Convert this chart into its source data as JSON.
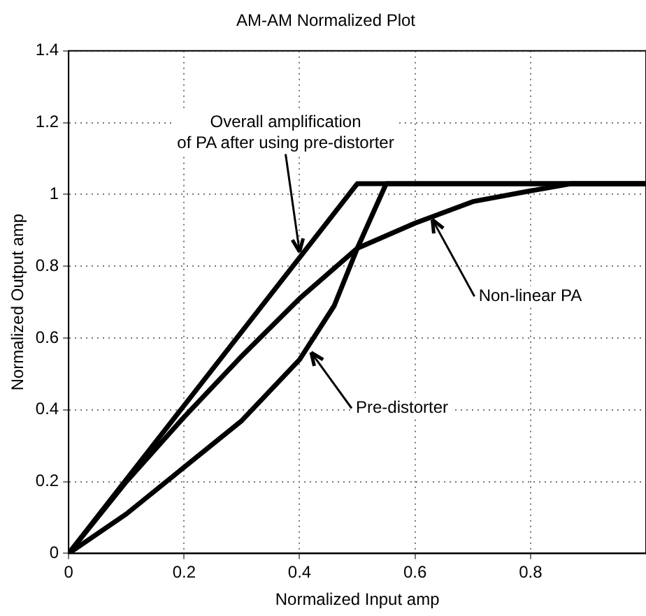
{
  "chart_data": {
    "type": "line",
    "title": "AM-AM Normalized Plot",
    "xlabel": "Normalized Input amp",
    "ylabel": "Normalized Output amp",
    "xlim": [
      0,
      1
    ],
    "xticks": [
      0,
      0.2,
      0.4,
      0.6,
      0.8
    ],
    "ylim": [
      0,
      1.4
    ],
    "yticks": [
      0,
      0.2,
      0.4,
      0.6,
      0.8,
      1,
      1.2,
      1.4
    ],
    "grid": true,
    "legend": false,
    "marker": "none",
    "line_style": "solid",
    "series": [
      {
        "color": "#000000",
        "x": [
          0,
          0.5,
          1
        ],
        "values": [
          0,
          1.03,
          1.03
        ]
      },
      {
        "color": "#000000",
        "x": [
          0,
          0.1,
          0.2,
          0.3,
          0.4,
          0.5,
          0.6,
          0.7,
          0.8,
          0.87,
          1
        ],
        "values": [
          0,
          0.2,
          0.38,
          0.55,
          0.71,
          0.85,
          0.92,
          0.98,
          1.01,
          1.03,
          1.03
        ]
      },
      {
        "color": "#000000",
        "x": [
          0,
          0.1,
          0.2,
          0.3,
          0.4,
          0.46,
          0.5,
          0.55,
          1
        ],
        "values": [
          0,
          0.11,
          0.24,
          0.37,
          0.54,
          0.69,
          0.85,
          1.03,
          1.03
        ]
      }
    ],
    "annotations": [
      {
        "text": "Overall amplification\nof PA after using pre-distorter",
        "x": 0.4,
        "y": 0.84
      },
      {
        "text": "Non-linear PA",
        "x": 0.63,
        "y": 0.93
      },
      {
        "text": "Pre-distorter",
        "x": 0.42,
        "y": 0.56
      }
    ]
  }
}
